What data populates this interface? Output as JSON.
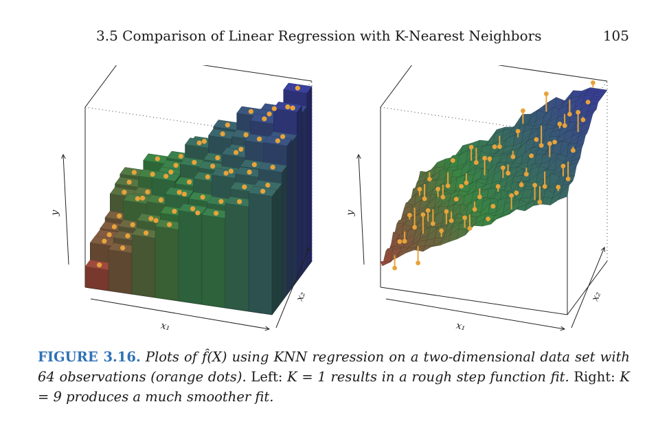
{
  "header": {
    "section_title": "3.5 Comparison of Linear Regression with K-Nearest Neighbors",
    "page_number": "105"
  },
  "figure": {
    "axis_labels": {
      "y": "y",
      "x1": "x₁",
      "x2": "x₂"
    },
    "panels": [
      {
        "id": "left",
        "style": "step",
        "K": 1
      },
      {
        "id": "right",
        "style": "smooth",
        "K": 9
      }
    ],
    "colors": {
      "dot": "#e8a33a",
      "surface_low": "#c9383d",
      "surface_mid": "#3e8f4a",
      "surface_high": "#3d3fa8"
    }
  },
  "caption": {
    "label": "FIGURE 3.16.",
    "seg1": " Plots of f̂(X) using KNN regression on a two-dimensional data set with 64 observations (orange dots). ",
    "seg2": "Left: ",
    "seg3": "K = 1 results in a rough step function fit. ",
    "seg4": "Right: ",
    "seg5": "K = 9 produces a much smoother fit."
  }
}
